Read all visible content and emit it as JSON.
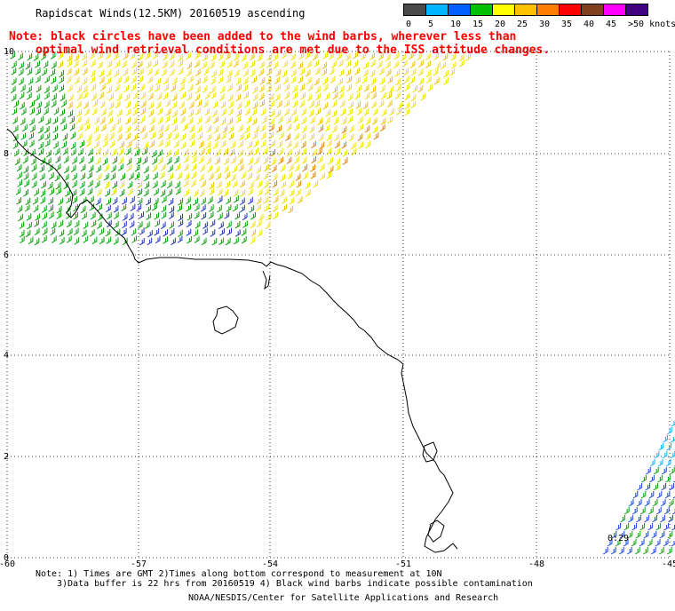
{
  "title": "Rapidscat Winds(12.5KM) 20160519 ascending",
  "note": {
    "line1": "Note: black circles have been added to the wind barbs, wherever less than",
    "line2": "optimal wind retrieval conditions are met due to the ISS attitude changes."
  },
  "colorbar": {
    "labels": [
      "0",
      "5",
      "10",
      "15",
      "20",
      "25",
      "30",
      "35",
      "40",
      "45",
      ">50 knots"
    ],
    "colors": [
      "#4a4a4a",
      "#00b4ff",
      "#0060ff",
      "#00c000",
      "#ffff00",
      "#ffc000",
      "#ff8000",
      "#ff0000",
      "#804020",
      "#ff00ff",
      "#400080"
    ]
  },
  "axes": {
    "lon_labels": [
      "-60",
      "-57",
      "-54",
      "-51",
      "-48",
      "-45"
    ],
    "lat_labels": [
      "0",
      "2",
      "4",
      "6",
      "8",
      "10"
    ]
  },
  "footer": {
    "line1": "Note: 1) Times are GMT 2)Times along bottom correspond to measurement at 10N",
    "line2": "3)Data buffer is 22 hrs from 20160519 4) Black wind barbs indicate possible contamination",
    "line3": "NOAA/NESDIS/Center for Satellite Applications and Research"
  },
  "time_marker": "0:29"
}
